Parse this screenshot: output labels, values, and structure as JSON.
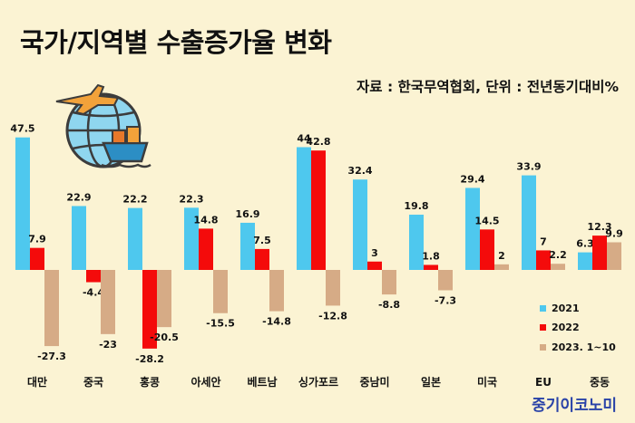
{
  "title": "국가/지역별 수출증가율 변화",
  "source": "자료 : 한국무역협회, 단위 : 전년동기대비%",
  "brand": "중기이코노미",
  "colors": {
    "s2021": "#4ec8ee",
    "s2022": "#f40b0b",
    "s2023": "#d6ab86"
  },
  "chart_data": {
    "type": "bar",
    "title": "국가/지역별 수출증가율 변화",
    "xlabel": "",
    "ylabel": "",
    "ylim": [
      -30,
      50
    ],
    "grid": false,
    "legend": "bottom-right",
    "categories": [
      "대만",
      "중국",
      "홍콩",
      "아세안",
      "베트남",
      "싱가포르",
      "중남미",
      "일본",
      "미국",
      "EU",
      "중동"
    ],
    "series": [
      {
        "name": "2021",
        "values": [
          47.5,
          22.9,
          22.2,
          22.3,
          16.9,
          44,
          32.4,
          19.8,
          29.4,
          33.9,
          6.3
        ]
      },
      {
        "name": "2022",
        "values": [
          7.9,
          -4.4,
          -28.2,
          14.8,
          7.5,
          42.8,
          3,
          1.8,
          14.5,
          7,
          12.3
        ]
      },
      {
        "name": "2023. 1~10",
        "values": [
          -27.3,
          -23,
          -20.5,
          -15.5,
          -14.8,
          -12.8,
          -8.8,
          -7.3,
          2,
          2.2,
          9.9
        ]
      }
    ]
  }
}
